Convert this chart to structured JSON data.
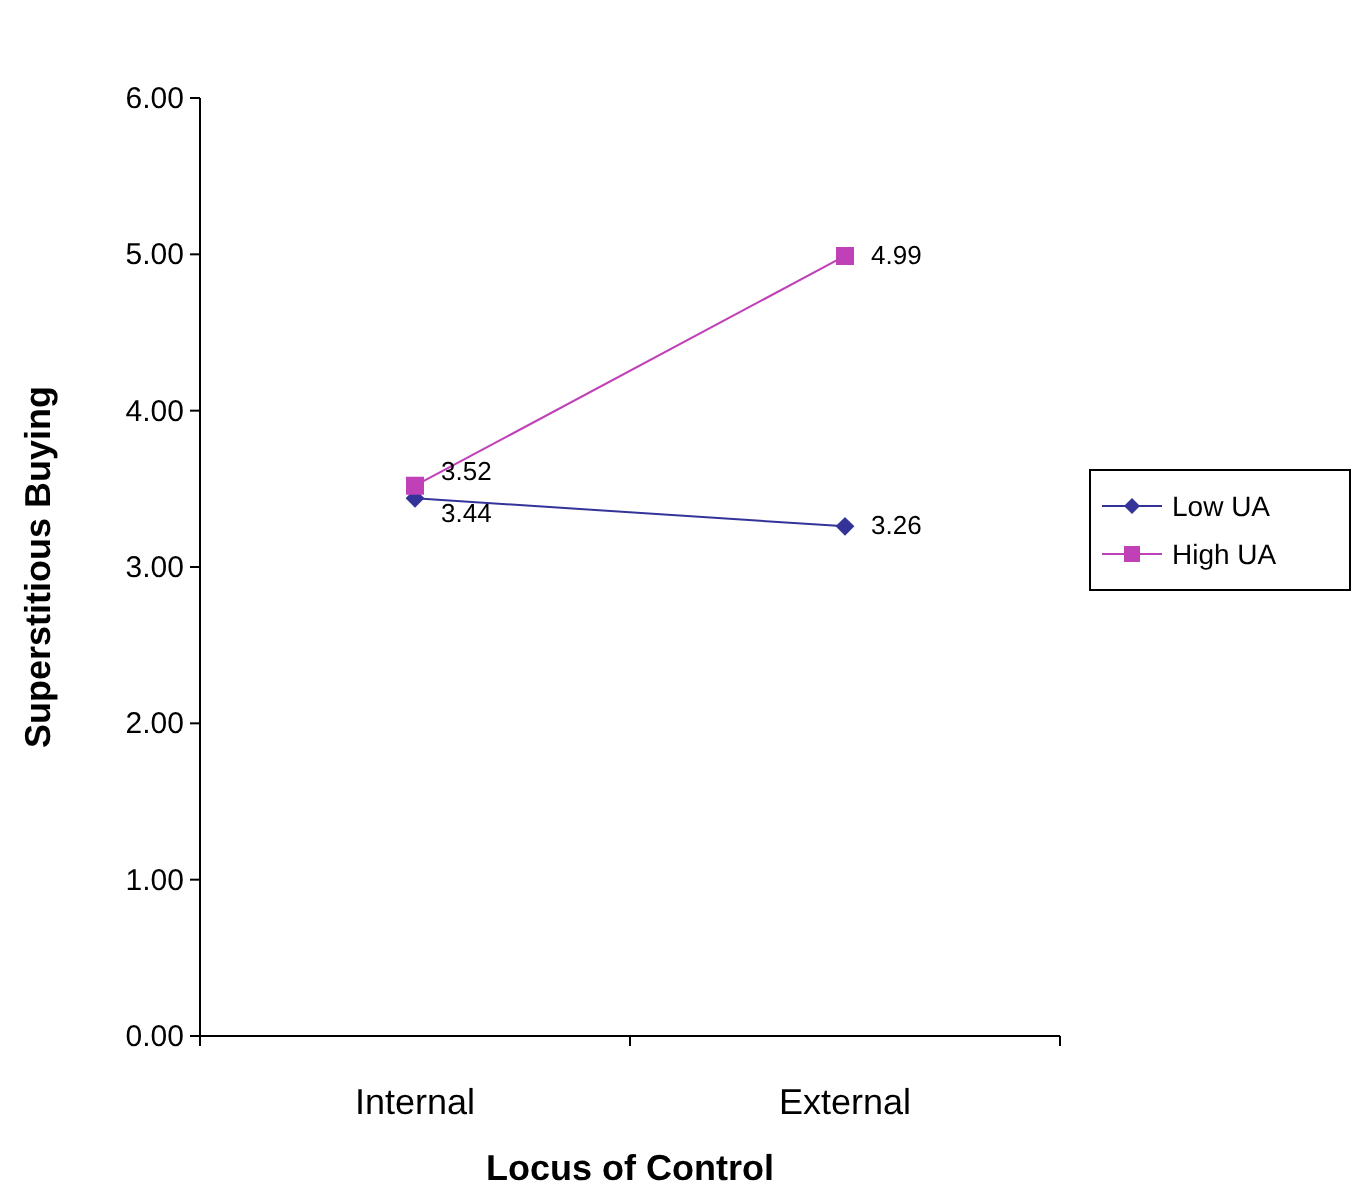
{
  "chart_data": {
    "type": "line",
    "xlabel": "Locus of Control",
    "ylabel": "Superstitious Buying",
    "categories": [
      "Internal",
      "External"
    ],
    "series": [
      {
        "name": "Low UA",
        "color": "#333399",
        "marker": "diamond",
        "values": [
          3.44,
          3.26
        ]
      },
      {
        "name": "High UA",
        "color": "#c040b8",
        "marker": "square",
        "values": [
          3.52,
          4.99
        ]
      }
    ],
    "ylim": [
      0,
      6
    ],
    "yticks": [
      {
        "value": 0,
        "label": "0.00"
      },
      {
        "value": 1,
        "label": "1.00"
      },
      {
        "value": 2,
        "label": "2.00"
      },
      {
        "value": 3,
        "label": "3.00"
      },
      {
        "value": 4,
        "label": "4.00"
      },
      {
        "value": 5,
        "label": "5.00"
      },
      {
        "value": 6,
        "label": "6.00"
      }
    ],
    "data_labels": true,
    "legend": "right"
  }
}
